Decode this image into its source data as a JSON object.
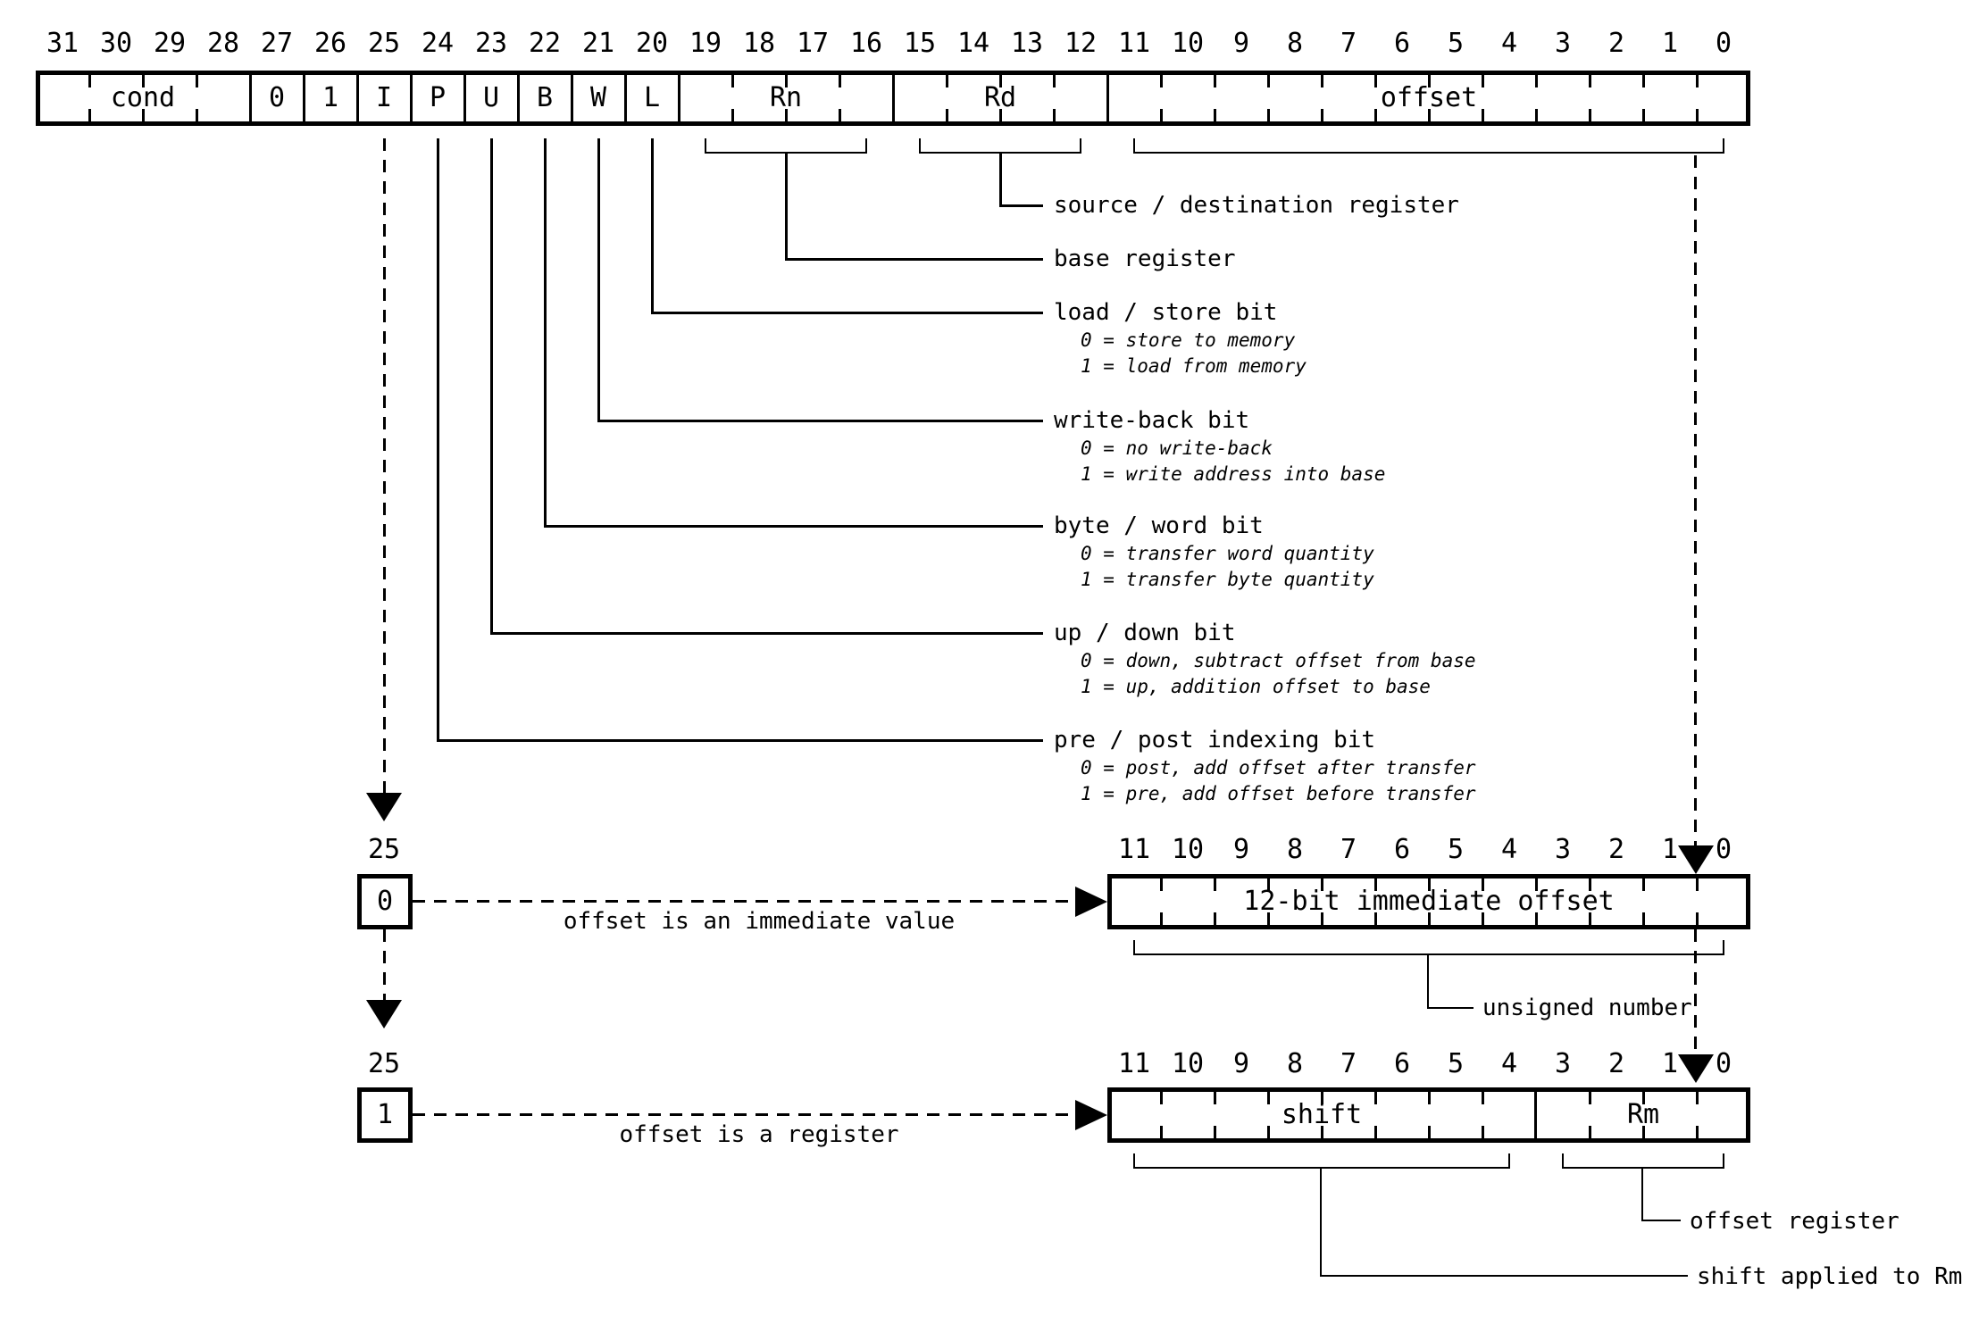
{
  "register": {
    "bit_labels": [
      "31",
      "30",
      "29",
      "28",
      "27",
      "26",
      "25",
      "24",
      "23",
      "22",
      "21",
      "20",
      "19",
      "18",
      "17",
      "16",
      "15",
      "14",
      "13",
      "12",
      "11",
      "10",
      "9",
      "8",
      "7",
      "6",
      "5",
      "4",
      "3",
      "2",
      "1",
      "0"
    ],
    "fields": [
      {
        "label": "cond",
        "from": 31,
        "to": 28
      },
      {
        "label": "0",
        "from": 27,
        "to": 27
      },
      {
        "label": "1",
        "from": 26,
        "to": 26
      },
      {
        "label": "I",
        "from": 25,
        "to": 25
      },
      {
        "label": "P",
        "from": 24,
        "to": 24
      },
      {
        "label": "U",
        "from": 23,
        "to": 23
      },
      {
        "label": "B",
        "from": 22,
        "to": 22
      },
      {
        "label": "W",
        "from": 21,
        "to": 21
      },
      {
        "label": "L",
        "from": 20,
        "to": 20
      },
      {
        "label": "Rn",
        "from": 19,
        "to": 16
      },
      {
        "label": "Rd",
        "from": 15,
        "to": 12
      },
      {
        "label": "offset",
        "from": 11,
        "to": 0
      }
    ]
  },
  "annotations": [
    {
      "label": "source / destination register",
      "details": []
    },
    {
      "label": "base register",
      "details": []
    },
    {
      "label": "load / store bit",
      "details": [
        "0 = store to memory",
        "1 = load from memory"
      ]
    },
    {
      "label": "write-back bit",
      "details": [
        "0 = no write-back",
        "1 = write address into base"
      ]
    },
    {
      "label": "byte / word bit",
      "details": [
        "0 = transfer word quantity",
        "1 = transfer byte quantity"
      ]
    },
    {
      "label": "up / down bit",
      "details": [
        "0 = down, subtract offset from base",
        "1 = up, addition offset to base"
      ]
    },
    {
      "label": "pre / post indexing bit",
      "details": [
        "0 = post, add offset after transfer",
        "1 = pre, add offset before transfer"
      ]
    }
  ],
  "immediate_variant": {
    "bit_number": "25",
    "bit_value": "0",
    "caption": "offset is an immediate value",
    "bit_labels": [
      "11",
      "10",
      "9",
      "8",
      "7",
      "6",
      "5",
      "4",
      "3",
      "2",
      "1",
      "0"
    ],
    "field_label": "12-bit immediate offset",
    "note": "unsigned number"
  },
  "register_variant": {
    "bit_number": "25",
    "bit_value": "1",
    "caption": "offset is a register",
    "bit_labels": [
      "11",
      "10",
      "9",
      "8",
      "7",
      "6",
      "5",
      "4",
      "3",
      "2",
      "1",
      "0"
    ],
    "fields": [
      {
        "label": "shift",
        "from": 11,
        "to": 4
      },
      {
        "label": "Rm",
        "from": 3,
        "to": 0
      }
    ],
    "notes": [
      "shift applied to Rm",
      "offset register"
    ]
  }
}
